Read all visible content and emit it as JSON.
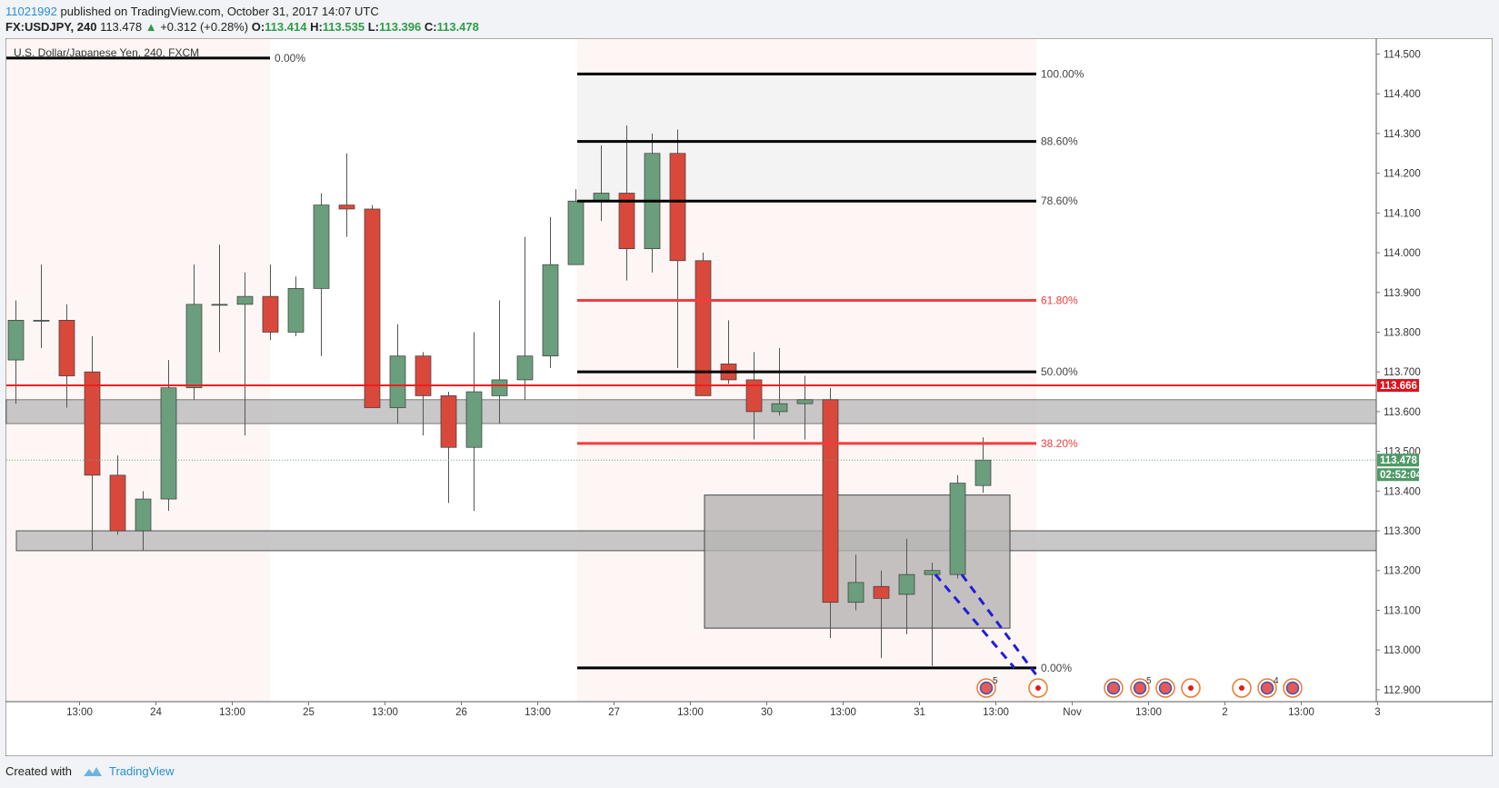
{
  "header": {
    "user": "11021992",
    "published": "published on TradingView.com, October 31, 2017 14:07 UTC",
    "symbol": "FX:USDJPY, 240",
    "last": "113.478",
    "change": "+0.312 (+0.28%)",
    "o_label": "O:",
    "o_value": "113.414",
    "h_label": "H:",
    "h_value": "113.535",
    "l_label": "L:",
    "l_value": "113.396",
    "c_label": "C:",
    "c_value": "113.478"
  },
  "footer": {
    "created_with": "Created with",
    "brand": "TradingView"
  },
  "colors": {
    "up": "#6b9e7c",
    "down": "#d9493b",
    "wick": "#555555",
    "fib_black": "#000000",
    "fib_red": "#f23d3d",
    "level_red": "#f01e1e",
    "zone_fill": "#b8b8b8",
    "box_fill": "#b7b3b3",
    "dash": "#1e1ed8",
    "session_bg": "#fdf6f5",
    "fib_bg": "#f3f3f3"
  },
  "chart_data": {
    "type": "candlestick",
    "title": "U.S. Dollar/Japanese Yen, 240, FXCM",
    "ylim": [
      112.87,
      114.54
    ],
    "y_ticks": [
      "114.500",
      "114.400",
      "114.300",
      "114.200",
      "114.100",
      "114.000",
      "113.900",
      "113.800",
      "113.700",
      "113.600",
      "113.500",
      "113.400",
      "113.300",
      "113.200",
      "113.100",
      "113.000",
      "112.900"
    ],
    "x_ticks": [
      {
        "i": 2.5,
        "label": "13:00"
      },
      {
        "i": 5.5,
        "label": "24"
      },
      {
        "i": 8.5,
        "label": "13:00"
      },
      {
        "i": 11.5,
        "label": "25"
      },
      {
        "i": 14.5,
        "label": "13:00"
      },
      {
        "i": 17.5,
        "label": "26"
      },
      {
        "i": 20.5,
        "label": "13:00"
      },
      {
        "i": 23.5,
        "label": "27"
      },
      {
        "i": 26.5,
        "label": "13:00"
      },
      {
        "i": 29.5,
        "label": "30"
      },
      {
        "i": 32.5,
        "label": "13:00"
      },
      {
        "i": 35.5,
        "label": "31"
      },
      {
        "i": 38.5,
        "label": "13:00"
      },
      {
        "i": 41.5,
        "label": "Nov"
      },
      {
        "i": 44.5,
        "label": "13:00"
      },
      {
        "i": 47.5,
        "label": "2"
      },
      {
        "i": 50.5,
        "label": "13:00"
      },
      {
        "i": 53.5,
        "label": "3"
      }
    ],
    "candles": [
      {
        "o": 113.73,
        "h": 113.88,
        "l": 113.62,
        "c": 113.83
      },
      {
        "o": 113.83,
        "h": 113.97,
        "l": 113.76,
        "c": 113.83
      },
      {
        "o": 113.83,
        "h": 113.87,
        "l": 113.61,
        "c": 113.69
      },
      {
        "o": 113.7,
        "h": 113.79,
        "l": 113.25,
        "c": 113.44
      },
      {
        "o": 113.44,
        "h": 113.49,
        "l": 113.29,
        "c": 113.3
      },
      {
        "o": 113.3,
        "h": 113.4,
        "l": 113.25,
        "c": 113.38
      },
      {
        "o": 113.38,
        "h": 113.73,
        "l": 113.35,
        "c": 113.66
      },
      {
        "o": 113.66,
        "h": 113.97,
        "l": 113.63,
        "c": 113.87
      },
      {
        "o": 113.87,
        "h": 114.02,
        "l": 113.75,
        "c": 113.87
      },
      {
        "o": 113.87,
        "h": 113.95,
        "l": 113.54,
        "c": 113.89
      },
      {
        "o": 113.89,
        "h": 113.97,
        "l": 113.78,
        "c": 113.8
      },
      {
        "o": 113.8,
        "h": 113.94,
        "l": 113.79,
        "c": 113.91
      },
      {
        "o": 113.91,
        "h": 114.15,
        "l": 113.74,
        "c": 114.12
      },
      {
        "o": 114.12,
        "h": 114.25,
        "l": 114.04,
        "c": 114.11
      },
      {
        "o": 114.11,
        "h": 114.12,
        "l": 113.61,
        "c": 113.61
      },
      {
        "o": 113.61,
        "h": 113.82,
        "l": 113.57,
        "c": 113.74
      },
      {
        "o": 113.74,
        "h": 113.75,
        "l": 113.54,
        "c": 113.64
      },
      {
        "o": 113.64,
        "h": 113.65,
        "l": 113.37,
        "c": 113.51
      },
      {
        "o": 113.51,
        "h": 113.8,
        "l": 113.35,
        "c": 113.65
      },
      {
        "o": 113.64,
        "h": 113.88,
        "l": 113.57,
        "c": 113.68
      },
      {
        "o": 113.68,
        "h": 114.04,
        "l": 113.63,
        "c": 113.74
      },
      {
        "o": 113.74,
        "h": 114.09,
        "l": 113.71,
        "c": 113.97
      },
      {
        "o": 113.97,
        "h": 114.16,
        "l": 113.97,
        "c": 114.13
      },
      {
        "o": 114.13,
        "h": 114.27,
        "l": 114.08,
        "c": 114.15
      },
      {
        "o": 114.15,
        "h": 114.32,
        "l": 113.93,
        "c": 114.01
      },
      {
        "o": 114.01,
        "h": 114.3,
        "l": 113.95,
        "c": 114.25
      },
      {
        "o": 114.25,
        "h": 114.31,
        "l": 113.71,
        "c": 113.98
      },
      {
        "o": 113.98,
        "h": 114.0,
        "l": 113.64,
        "c": 113.64
      },
      {
        "o": 113.72,
        "h": 113.83,
        "l": 113.67,
        "c": 113.68
      },
      {
        "o": 113.68,
        "h": 113.75,
        "l": 113.53,
        "c": 113.6
      },
      {
        "o": 113.6,
        "h": 113.76,
        "l": 113.59,
        "c": 113.62
      },
      {
        "o": 113.62,
        "h": 113.69,
        "l": 113.53,
        "c": 113.63
      },
      {
        "o": 113.63,
        "h": 113.66,
        "l": 113.03,
        "c": 113.12
      },
      {
        "o": 113.12,
        "h": 113.24,
        "l": 113.1,
        "c": 113.17
      },
      {
        "o": 113.16,
        "h": 113.2,
        "l": 112.98,
        "c": 113.13
      },
      {
        "o": 113.14,
        "h": 113.28,
        "l": 113.04,
        "c": 113.19
      },
      {
        "o": 113.19,
        "h": 113.22,
        "l": 112.96,
        "c": 113.2
      },
      {
        "o": 113.19,
        "h": 113.44,
        "l": 113.18,
        "c": 113.42
      },
      {
        "o": 113.414,
        "h": 113.535,
        "l": 113.396,
        "c": 113.478
      }
    ],
    "fib_left": [
      {
        "level": "0.00%",
        "price": 114.49,
        "color": "black"
      }
    ],
    "fib_right": [
      {
        "level": "100.00%",
        "price": 114.45,
        "color": "black"
      },
      {
        "level": "88.60%",
        "price": 114.28,
        "color": "black"
      },
      {
        "level": "78.60%",
        "price": 114.13,
        "color": "black"
      },
      {
        "level": "61.80%",
        "price": 113.88,
        "color": "red"
      },
      {
        "level": "50.00%",
        "price": 113.7,
        "color": "black"
      },
      {
        "level": "38.20%",
        "price": 113.52,
        "color": "red"
      },
      {
        "level": "0.00%",
        "price": 112.955,
        "color": "black"
      }
    ],
    "hline_price": 113.666,
    "hline_label": "113.666",
    "last_price_label": "113.478",
    "countdown_label": "02:52:04",
    "zones": [
      {
        "top": 113.63,
        "bottom": 113.57
      },
      {
        "top": 113.3,
        "bottom": 113.25
      }
    ],
    "box": {
      "top": 113.39,
      "bottom": 113.055
    },
    "event_badges": [
      "5",
      "5",
      "4"
    ]
  }
}
